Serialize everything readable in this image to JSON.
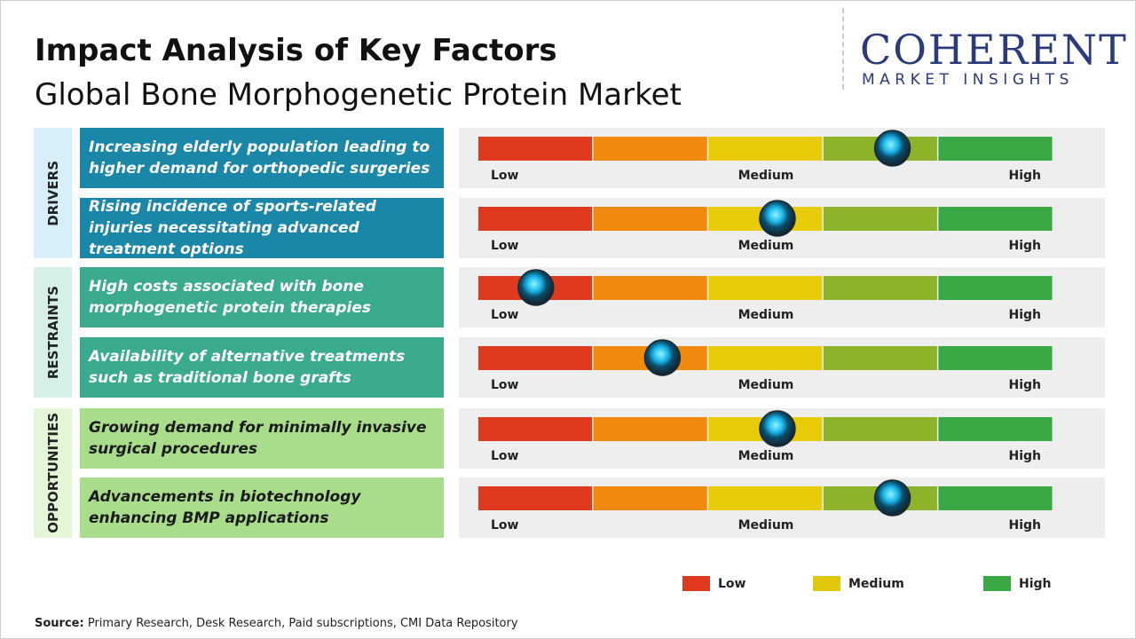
{
  "header": {
    "title": "Impact Analysis of Key Factors",
    "subtitle": "Global Bone Morphogenetic Protein Market"
  },
  "logo": {
    "name": "COHERENT",
    "tagline": "MARKET INSIGHTS"
  },
  "xlim": [
    0,
    5
  ],
  "segment_colors": [
    "#e03a1e",
    "#ef8a0e",
    "#e8cc0a",
    "#8db32b",
    "#3aa845"
  ],
  "scale_labels": [
    "Low",
    "Medium",
    "High"
  ],
  "groups": [
    {
      "name": "DRIVERS",
      "color": "#1a86a8",
      "light": "#d8eff9",
      "text_color": "#ffffff",
      "factors": [
        {
          "text": "Increasing elderly population leading to higher demand for orthopedic surgeries",
          "value": 3.6
        },
        {
          "text": "Rising incidence of sports-related injuries necessitating advanced treatment options",
          "value": 2.6
        }
      ]
    },
    {
      "name": "RESTRAINTS",
      "color": "#3aab8f",
      "light": "#d6efe7",
      "text_color": "#ffffff",
      "factors": [
        {
          "text": "High costs associated with bone morphogenetic protein therapies",
          "value": 0.5
        },
        {
          "text": "Availability of alternative treatments such as traditional bone grafts",
          "value": 1.6
        }
      ]
    },
    {
      "name": "OPPORTUNITIES",
      "color": "#a9dc8b",
      "light": "#e4f5d8",
      "text_color": "#1a1a1a",
      "factors": [
        {
          "text": "Growing demand for minimally invasive surgical procedures",
          "value": 2.6
        },
        {
          "text": "Advancements in biotechnology enhancing BMP applications",
          "value": 3.6
        }
      ]
    }
  ],
  "legend": [
    {
      "name": "Low",
      "color": "#e03a1e"
    },
    {
      "name": "Medium",
      "color": "#e2c80c"
    },
    {
      "name": "High",
      "color": "#3aa845"
    }
  ],
  "source": {
    "label": "Source:",
    "text": "Primary Research, Desk Research, Paid subscriptions, CMI Data Repository"
  }
}
